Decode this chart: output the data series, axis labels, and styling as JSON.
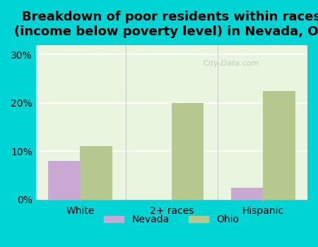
{
  "title": "Breakdown of poor residents within races\n(income below poverty level) in Nevada, OH",
  "categories": [
    "White",
    "2+ races",
    "Hispanic"
  ],
  "nevada_values": [
    8.0,
    0.0,
    2.5
  ],
  "ohio_values": [
    11.0,
    20.0,
    22.5
  ],
  "nevada_color": "#c9a8d4",
  "ohio_color": "#b5c98e",
  "bg_outer": "#00d4d4",
  "bg_inner": "#eaf5e0",
  "yticks": [
    0,
    10,
    20,
    30
  ],
  "ytick_labels": [
    "0%",
    "10%",
    "20%",
    "30%"
  ],
  "ylim": [
    0,
    32
  ],
  "bar_width": 0.35,
  "legend_nevada": "Nevada",
  "legend_ohio": "Ohio",
  "title_fontsize": 13,
  "tick_fontsize": 10,
  "legend_fontsize": 10
}
